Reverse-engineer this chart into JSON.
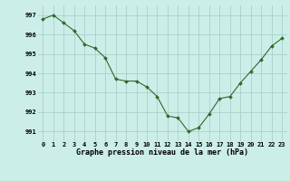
{
  "hours": [
    0,
    1,
    2,
    3,
    4,
    5,
    6,
    7,
    8,
    9,
    10,
    11,
    12,
    13,
    14,
    15,
    16,
    17,
    18,
    19,
    20,
    21,
    22,
    23
  ],
  "pressure": [
    996.8,
    997.0,
    996.6,
    996.2,
    995.5,
    995.3,
    994.8,
    993.7,
    993.6,
    993.6,
    993.3,
    992.8,
    991.8,
    991.7,
    991.0,
    991.2,
    991.9,
    992.7,
    992.8,
    993.5,
    994.1,
    994.7,
    995.4,
    995.8
  ],
  "line_color": "#2d6a2d",
  "marker_color": "#2d6a2d",
  "bg_color": "#cceee8",
  "grid_color": "#aacfca",
  "xlabel": "Graphe pression niveau de la mer (hPa)",
  "ylim": [
    990.5,
    997.5
  ],
  "yticks": [
    991,
    992,
    993,
    994,
    995,
    996,
    997
  ],
  "xticks": [
    0,
    1,
    2,
    3,
    4,
    5,
    6,
    7,
    8,
    9,
    10,
    11,
    12,
    13,
    14,
    15,
    16,
    17,
    18,
    19,
    20,
    21,
    22,
    23
  ],
  "tick_fontsize": 5.0,
  "xlabel_fontsize": 6.0
}
